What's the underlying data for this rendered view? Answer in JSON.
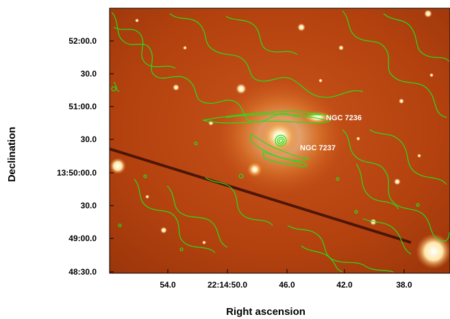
{
  "figure": {
    "y_axis_label": "Declination",
    "x_axis_label": "Right ascension",
    "y_ticks": [
      "52:00.0",
      "30.0",
      "51:00.0",
      "30.0",
      "13:50:00.0",
      "30.0",
      "49:00.0",
      "48:30.0"
    ],
    "x_ticks": [
      "54.0",
      "22:14:50.0",
      "46.0",
      "42.0",
      "38.0"
    ],
    "annotations": [
      "NGC 7236",
      "NGC 7237"
    ],
    "colors": {
      "background_image": "#b8410f",
      "contour": "#22e01c",
      "label_text": "#ffffff",
      "frame": "#000000"
    }
  }
}
